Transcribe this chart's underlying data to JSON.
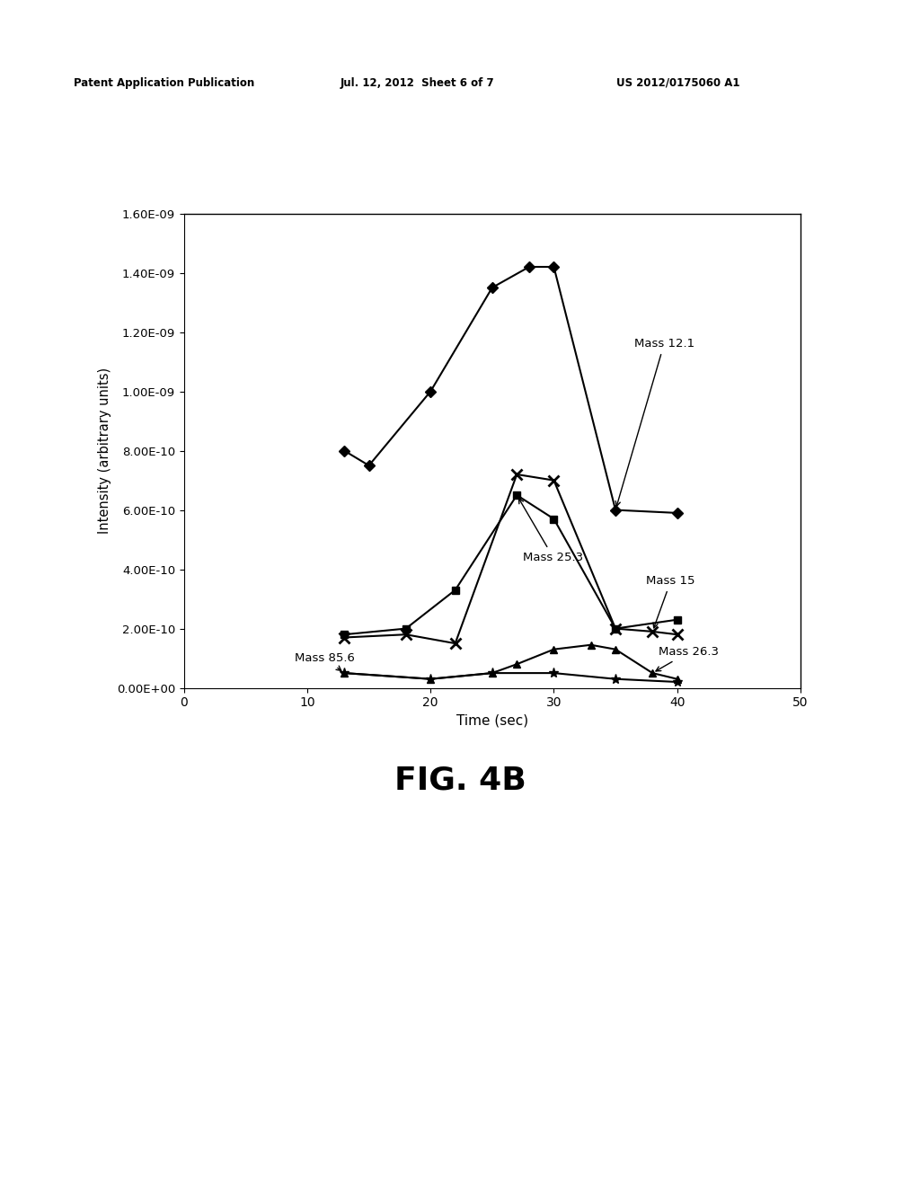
{
  "title": "FIG. 4B",
  "xlabel": "Time (sec)",
  "ylabel": "Intensity (arbitrary units)",
  "header_left": "Patent Application Publication",
  "header_mid": "Jul. 12, 2012  Sheet 6 of 7",
  "header_right": "US 2012/0175060 A1",
  "xlim": [
    0,
    50
  ],
  "ylim": [
    0,
    1.6e-09
  ],
  "xticks": [
    0,
    10,
    20,
    30,
    40,
    50
  ],
  "yticks": [
    0,
    2e-10,
    4e-10,
    6e-10,
    8e-10,
    1e-09,
    1.2e-09,
    1.4e-09,
    1.6e-09
  ],
  "ytick_labels": [
    "0.00E+00",
    "2.00E-10",
    "4.00E-10",
    "6.00E-10",
    "8.00E-10",
    "1.00E-09",
    "1.20E-09",
    "1.40E-09",
    "1.60E-09"
  ],
  "mass121_x": [
    13,
    15,
    20,
    25,
    28,
    30,
    35,
    40
  ],
  "mass121_y": [
    8e-10,
    7.5e-10,
    1e-09,
    1.35e-09,
    1.42e-09,
    1.42e-09,
    6e-10,
    5.9e-10
  ],
  "mass253_x": [
    13,
    18,
    22,
    27,
    30,
    35,
    40
  ],
  "mass253_y": [
    1.8e-10,
    2e-10,
    3.3e-10,
    6.5e-10,
    5.7e-10,
    2e-10,
    2.3e-10
  ],
  "mass15_x": [
    13,
    18,
    22,
    27,
    30,
    35,
    38,
    40
  ],
  "mass15_y": [
    1.7e-10,
    1.8e-10,
    1.5e-10,
    7.2e-10,
    7e-10,
    2e-10,
    1.9e-10,
    1.8e-10
  ],
  "mass856_x": [
    13,
    20,
    25,
    30,
    35,
    40
  ],
  "mass856_y": [
    5e-11,
    3e-11,
    5e-11,
    5e-11,
    3e-11,
    2e-11
  ],
  "mass263_x": [
    13,
    20,
    25,
    27,
    30,
    33,
    35,
    38,
    40
  ],
  "mass263_y": [
    5e-11,
    3e-11,
    5e-11,
    8e-11,
    1.3e-10,
    1.45e-10,
    1.3e-10,
    5e-11,
    3e-11
  ]
}
